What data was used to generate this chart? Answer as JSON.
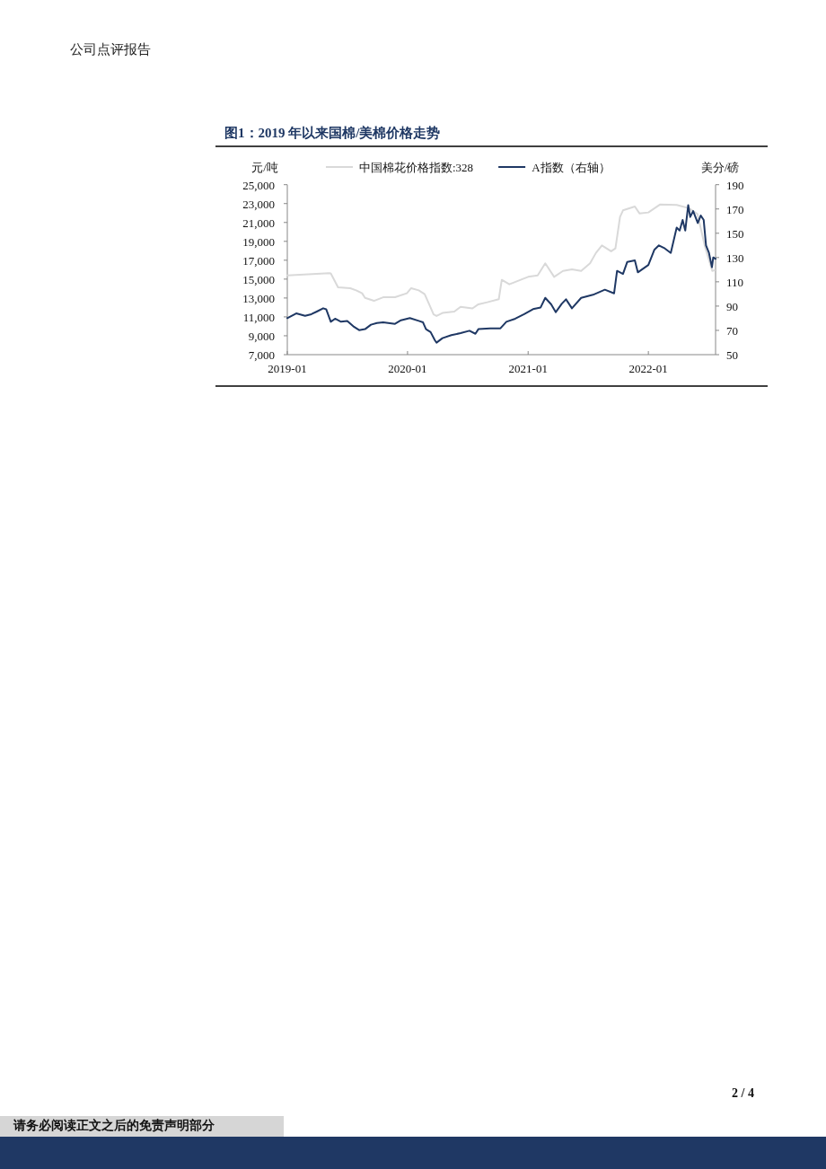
{
  "chart_data": {
    "type": "line",
    "title": "图1：2019 年以来国棉/美棉价格走势",
    "ylabel": "元/吨",
    "y2label": "美分/磅",
    "legend": "top",
    "annotations": [
      "公司点评报告",
      "2 / 4",
      "请务必阅读正文之后的免责声明部分"
    ],
    "xlim": [
      "2019-01-01",
      "2022-07-24"
    ],
    "xticks": [
      {
        "value": "2019-01-01",
        "label": "2019-01"
      },
      {
        "value": "2020-01-01",
        "label": "2020-01"
      },
      {
        "value": "2021-01-01",
        "label": "2021-01"
      },
      {
        "value": "2022-01-01",
        "label": "2022-01"
      }
    ],
    "ylim": [
      7000,
      25000
    ],
    "yticks": [
      {
        "value": 7000,
        "label": "7,000"
      },
      {
        "value": 9000,
        "label": "9,000"
      },
      {
        "value": 11000,
        "label": "11,000"
      },
      {
        "value": 13000,
        "label": "13,000"
      },
      {
        "value": 15000,
        "label": "15,000"
      },
      {
        "value": 17000,
        "label": "17,000"
      },
      {
        "value": 19000,
        "label": "19,000"
      },
      {
        "value": 21000,
        "label": "21,000"
      },
      {
        "value": 23000,
        "label": "23,000"
      },
      {
        "value": 25000,
        "label": "25,000"
      }
    ],
    "y2lim": [
      50,
      190
    ],
    "y2ticks": [
      50,
      70,
      90,
      110,
      130,
      150,
      170,
      190
    ],
    "series": [
      {
        "name": "中国棉花价格指数:328",
        "color": "#d9d9d9",
        "x": [
          "2019-01-01",
          "2019-05-08",
          "2019-05-13",
          "2019-06-04",
          "2019-07-11",
          "2019-07-29",
          "2019-08-16",
          "2019-08-25",
          "2019-09-21",
          "2019-10-19",
          "2019-11-24",
          "2019-12-30",
          "2020-01-12",
          "2020-02-04",
          "2020-02-22",
          "2020-03-06",
          "2020-03-20",
          "2020-03-29",
          "2020-04-16",
          "2020-05-22",
          "2020-06-10",
          "2020-07-16",
          "2020-08-03",
          "2020-08-30",
          "2020-10-04",
          "2020-10-13",
          "2020-11-05",
          "2021-01-01",
          "2021-01-30",
          "2021-02-22",
          "2021-03-21",
          "2021-04-17",
          "2021-05-14",
          "2021-06-11",
          "2021-07-08",
          "2021-07-26",
          "2021-08-13",
          "2021-09-10",
          "2021-09-23",
          "2021-10-07",
          "2021-10-16",
          "2021-11-21",
          "2021-12-05",
          "2022-01-01",
          "2022-02-06",
          "2022-03-28",
          "2022-05-03",
          "2022-05-30",
          "2022-06-22",
          "2022-07-14",
          "2022-07-21"
        ],
        "values": [
          15400,
          15620,
          15600,
          14130,
          14040,
          13810,
          13500,
          13020,
          12700,
          13080,
          13080,
          13500,
          14040,
          13810,
          13400,
          12380,
          11270,
          11100,
          11420,
          11570,
          12070,
          11900,
          12330,
          12550,
          12870,
          14920,
          14450,
          15240,
          15400,
          16670,
          15240,
          15870,
          16030,
          15870,
          16670,
          17780,
          18570,
          17940,
          18250,
          21580,
          22280,
          22690,
          21960,
          22060,
          22910,
          22850,
          22530,
          21900,
          18410,
          15870,
          15930
        ]
      },
      {
        "name": "A指数（右轴）",
        "color": "#1f3864",
        "axis": "y2",
        "x": [
          "2019-01-01",
          "2019-01-28",
          "2019-02-24",
          "2019-03-15",
          "2019-04-02",
          "2019-04-20",
          "2019-04-29",
          "2019-05-13",
          "2019-05-26",
          "2019-06-13",
          "2019-07-02",
          "2019-07-20",
          "2019-08-07",
          "2019-08-25",
          "2019-09-12",
          "2019-09-30",
          "2019-10-19",
          "2019-11-24",
          "2019-12-12",
          "2020-01-08",
          "2020-02-04",
          "2020-02-17",
          "2020-02-26",
          "2020-03-11",
          "2020-03-24",
          "2020-03-29",
          "2020-04-16",
          "2020-05-13",
          "2020-06-10",
          "2020-07-07",
          "2020-07-25",
          "2020-08-03",
          "2020-09-08",
          "2020-10-09",
          "2020-10-27",
          "2020-11-23",
          "2020-12-20",
          "2021-01-16",
          "2021-02-08",
          "2021-02-22",
          "2021-03-12",
          "2021-03-26",
          "2021-04-13",
          "2021-04-26",
          "2021-05-14",
          "2021-06-11",
          "2021-07-17",
          "2021-08-22",
          "2021-09-19",
          "2021-09-28",
          "2021-10-16",
          "2021-10-29",
          "2021-11-21",
          "2021-11-30",
          "2022-01-01",
          "2022-01-19",
          "2022-02-02",
          "2022-02-20",
          "2022-03-10",
          "2022-03-28",
          "2022-04-06",
          "2022-04-15",
          "2022-04-23",
          "2022-05-02",
          "2022-05-08",
          "2022-05-17",
          "2022-05-31",
          "2022-06-09",
          "2022-06-18",
          "2022-06-25",
          "2022-07-04",
          "2022-07-13",
          "2022-07-17",
          "2022-07-24"
        ],
        "values": [
          80.1,
          84.0,
          82.0,
          83.3,
          85.7,
          88.2,
          87.4,
          77.1,
          79.6,
          77.1,
          77.8,
          73.4,
          70.2,
          71.0,
          74.7,
          76.0,
          76.6,
          75.4,
          78.3,
          80.1,
          77.8,
          76.6,
          71.0,
          68.6,
          61.8,
          59.9,
          63.6,
          66.1,
          67.7,
          69.7,
          67.2,
          71.0,
          71.7,
          71.7,
          77.1,
          79.6,
          83.3,
          87.5,
          88.9,
          96.8,
          91.4,
          85.0,
          91.9,
          95.6,
          88.2,
          96.8,
          99.3,
          103.5,
          100.5,
          119.0,
          116.5,
          126.4,
          127.6,
          117.8,
          123.9,
          136.3,
          140.0,
          137.5,
          133.8,
          154.7,
          152.2,
          160.9,
          152.2,
          173.2,
          163.4,
          168.3,
          158.4,
          164.6,
          160.9,
          140.0,
          133.8,
          122.0,
          130.1,
          128.9
        ]
      }
    ]
  }
}
